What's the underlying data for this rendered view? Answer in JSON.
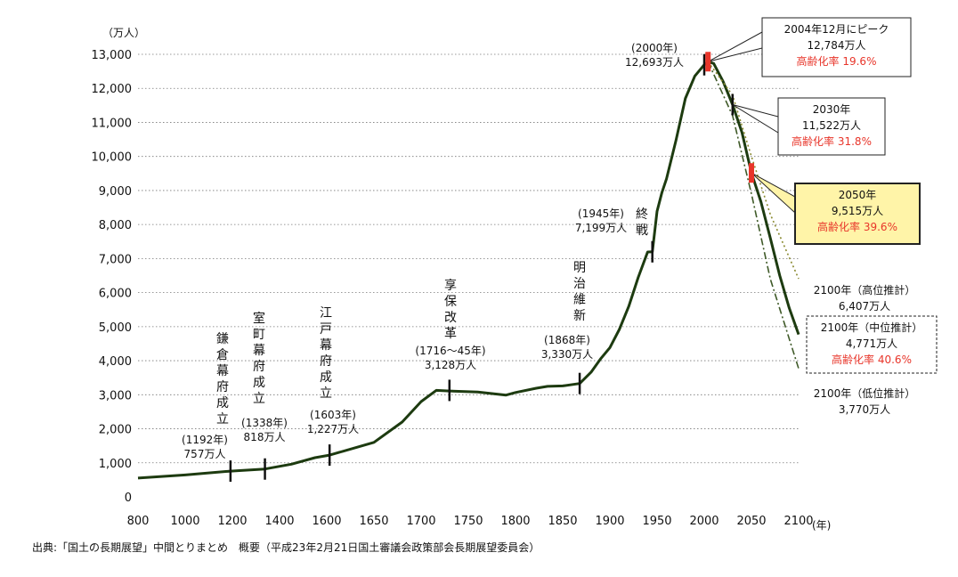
{
  "chart_data": {
    "type": "line",
    "ylabel": "（万人）",
    "xlabel": "(年)",
    "xlim": [
      800,
      2100
    ],
    "ylim": [
      0,
      13000
    ],
    "xticks": [
      800,
      1000,
      1200,
      1400,
      1600,
      1650,
      1700,
      1750,
      1800,
      1850,
      1900,
      1950,
      2000,
      2050,
      2100
    ],
    "xtick_labels": [
      "800",
      "1000",
      "1200",
      "1400",
      "1600",
      "1650",
      "1700",
      "1750",
      "1800",
      "1850",
      "1900",
      "1950",
      "2000",
      "2050",
      "2100"
    ],
    "yticks": [
      0,
      1000,
      2000,
      3000,
      4000,
      5000,
      6000,
      7000,
      8000,
      9000,
      10000,
      11000,
      12000,
      13000
    ],
    "ytick_labels": [
      "0",
      "1,000",
      "2,000",
      "3,000",
      "4,000",
      "5,000",
      "6,000",
      "7,000",
      "8,000",
      "9,000",
      "10,000",
      "11,000",
      "12,000",
      "13,000"
    ],
    "grid": true,
    "series": [
      {
        "name": "",
        "color": "#1d3b10",
        "style": "solid",
        "x": [
          800,
          1000,
          1192,
          1338,
          1450,
          1550,
          1603,
          1650,
          1680,
          1700,
          1716,
          1730,
          1760,
          1790,
          1800,
          1822,
          1834,
          1850,
          1868,
          1880,
          1890,
          1900,
          1910,
          1920,
          1930,
          1940,
          1945,
          1950,
          1955,
          1960,
          1970,
          1980,
          1990,
          2000,
          2004,
          2010,
          2020,
          2030,
          2040,
          2050,
          2060,
          2070,
          2080,
          2090,
          2100
        ],
        "y": [
          551,
          644,
          757,
          818,
          960,
          1150,
          1227,
          1600,
          2200,
          2800,
          3128,
          3110,
          3080,
          2990,
          3065,
          3191,
          3247,
          3260,
          3330,
          3660,
          4050,
          4385,
          4918,
          5596,
          6445,
          7193,
          7199,
          8390,
          8928,
          9342,
          10467,
          11706,
          12361,
          12693,
          12784,
          12730,
          12200,
          11522,
          10700,
          9515,
          8674,
          7600,
          6500,
          5550,
          4771
        ]
      },
      {
        "name": "高位推計",
        "color": "#8a8a30",
        "style": "dotted",
        "x": [
          2004,
          2030,
          2050,
          2070,
          2100
        ],
        "y": [
          12784,
          11800,
          10000,
          8300,
          6407
        ]
      },
      {
        "name": "低位推計",
        "color": "#3f5a28",
        "style": "dashdot",
        "x": [
          2004,
          2030,
          2050,
          2070,
          2100
        ],
        "y": [
          12784,
          11200,
          8900,
          6400,
          3770
        ]
      }
    ],
    "markers": [
      {
        "x": 1192,
        "y": 757,
        "color": "#111"
      },
      {
        "x": 1338,
        "y": 818,
        "color": "#111"
      },
      {
        "x": 1603,
        "y": 1227,
        "color": "#111"
      },
      {
        "x": 1730,
        "y": 3128,
        "color": "#111"
      },
      {
        "x": 1868,
        "y": 3330,
        "color": "#111"
      },
      {
        "x": 1945,
        "y": 7199,
        "color": "#111"
      },
      {
        "x": 2000,
        "y": 12693,
        "color": "#111"
      },
      {
        "x": 2004,
        "y": 12784,
        "color": "#e8352a"
      },
      {
        "x": 2030,
        "y": 11522,
        "color": "#111"
      },
      {
        "x": 2050,
        "y": 9515,
        "color": "#e8352a"
      }
    ],
    "annotations": [
      {
        "id": "kamakura",
        "vertical_label": "鎌倉幕府成立",
        "lines": [
          "(1192年)",
          "757万人"
        ]
      },
      {
        "id": "muromachi",
        "vertical_label": "室町幕府成立",
        "lines": [
          "(1338年)",
          "818万人"
        ]
      },
      {
        "id": "edo",
        "vertical_label": "江戸幕府成立",
        "lines": [
          "(1603年)",
          "1,227万人"
        ]
      },
      {
        "id": "kyoho",
        "vertical_label": "享保改革",
        "lines": [
          "(1716～45年)",
          "3,128万人"
        ]
      },
      {
        "id": "meiji",
        "vertical_label": "明治維新",
        "lines": [
          "(1868年)",
          "3,330万人"
        ]
      },
      {
        "id": "war_end",
        "vertical_label": "終戦",
        "lines": [
          "(1945年)",
          "7,199万人"
        ]
      },
      {
        "id": "y2000",
        "vertical_label": "",
        "lines": [
          "(2000年)",
          "12,693万人"
        ]
      }
    ],
    "callouts": [
      {
        "id": "peak",
        "lines": [
          "2004年12月にピーク",
          "12,784万人"
        ],
        "red_line": "高齢化率 19.6%",
        "box": "solid",
        "fill": "#ffffff"
      },
      {
        "id": "y2030",
        "lines": [
          "2030年",
          "11,522万人"
        ],
        "red_line": "高齢化率 31.8%",
        "box": "solid",
        "fill": "#ffffff"
      },
      {
        "id": "y2050",
        "lines": [
          "2050年",
          "9,515万人"
        ],
        "red_line": "高齢化率 39.6%",
        "box": "solid",
        "fill": "#fff4a8"
      },
      {
        "id": "high",
        "lines": [
          "2100年（高位推計）",
          "6,407万人"
        ],
        "red_line": "",
        "box": "none",
        "fill": ""
      },
      {
        "id": "mid",
        "lines": [
          "2100年（中位推計）",
          "4,771万人"
        ],
        "red_line": "高齢化率 40.6%",
        "box": "dashed",
        "fill": "#ffffff"
      },
      {
        "id": "low",
        "lines": [
          "2100年（低位推計）",
          "3,770万人"
        ],
        "red_line": "",
        "box": "none",
        "fill": ""
      }
    ]
  },
  "source_note": "出典:「国土の長期展望」中間とりまとめ　概要（平成23年2月21日国土審議会政策部会長期展望委員会）"
}
